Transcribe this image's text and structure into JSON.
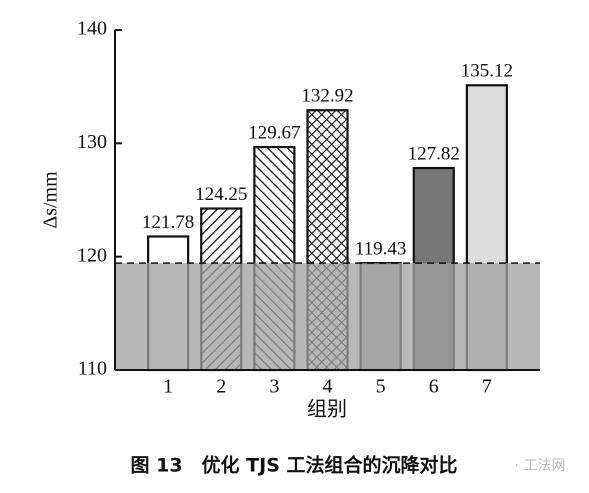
{
  "chart_data": {
    "type": "bar",
    "categories": [
      "1",
      "2",
      "3",
      "4",
      "5",
      "6",
      "7"
    ],
    "values": [
      121.78,
      124.25,
      129.67,
      132.92,
      119.43,
      127.82,
      135.12
    ],
    "fills": [
      "#ffffff",
      "url(#hatch-fwd)",
      "url(#hatch-back)",
      "url(#hatch-cross)",
      "#b4b4b4",
      "#777777",
      "#dcdcdc"
    ],
    "ylim": [
      110,
      140
    ],
    "yticks": [
      110,
      120,
      130,
      140
    ],
    "y_label": "Δs/mm",
    "x_label": "组别",
    "reference_fill": "#a0a0a0",
    "caption": "图 13　优化 TJS 工法组合的沉降对比",
    "watermark": "· 工法网"
  }
}
